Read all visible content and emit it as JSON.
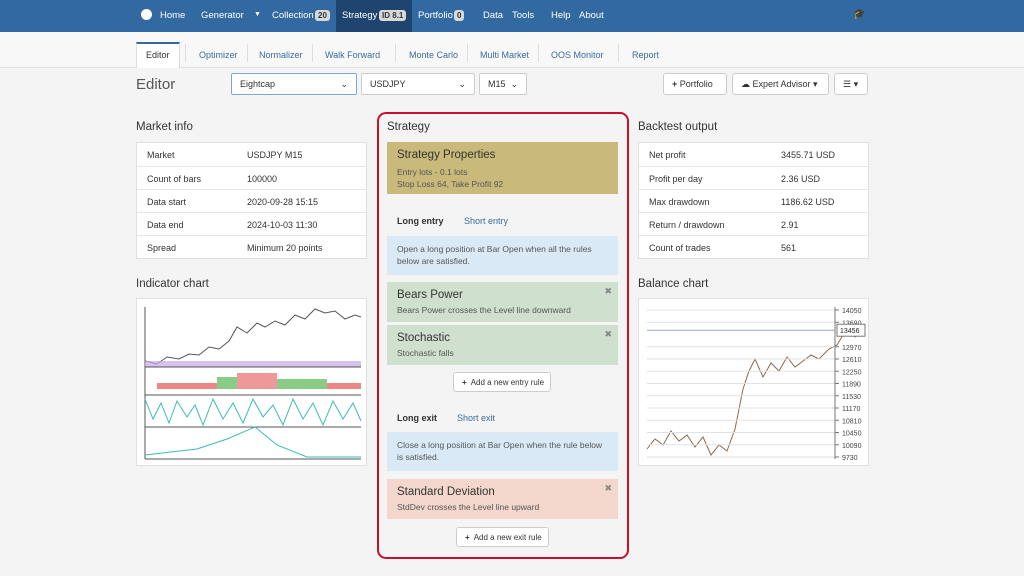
{
  "nav": {
    "items": [
      "Home",
      "Generator",
      "Collection",
      "Strategy",
      "Portfolio",
      "Data",
      "Tools",
      "Help",
      "About"
    ],
    "badges": {
      "collection": 20,
      "strategy": "ID 8.1",
      "portfolio": 0
    }
  },
  "tabs": [
    "Editor",
    "Optimizer",
    "Normalizer",
    "Walk Forward",
    "Monte Carlo",
    "Multi Market",
    "OOS Monitor",
    "Report"
  ],
  "toolbar": {
    "title": "Editor",
    "broker": "Eightcap",
    "symbol": "USDJPY",
    "period": "M15",
    "buttons": [
      "Portfolio",
      "Expert Advisor"
    ]
  },
  "market_info": {
    "title": "Market info",
    "rows": [
      [
        "Market",
        "USDJPY M15"
      ],
      [
        "Count of bars",
        100000
      ],
      [
        "Data start",
        "2020-09-28 15:15"
      ],
      [
        "Data end",
        "2024-10-03 11:30"
      ],
      [
        "Spread",
        "Minimum 20 points"
      ]
    ]
  },
  "indicator_chart": {
    "title": "Indicator chart"
  },
  "strategy": {
    "title": "Strategy",
    "properties": {
      "title": "Strategy Properties",
      "lines": [
        "Entry lots - 0.1 lots",
        "Stop Loss 64, Take Profit 92"
      ]
    },
    "entry": {
      "tabs": [
        "Long entry",
        "Short entry"
      ],
      "description": "Open a long position at Bar Open when all the rules below are satisfied.",
      "rules": [
        {
          "title": "Bears Power",
          "description": "Bears Power crosses the Level line downward"
        },
        {
          "title": "Stochastic",
          "description": "Stochastic falls"
        }
      ],
      "add_button": "Add a new entry rule"
    },
    "exit": {
      "tabs": [
        "Long exit",
        "Short exit"
      ],
      "description": "Close a long position at Bar Open when the rule below is satisfied.",
      "rules": [
        {
          "title": "Standard Deviation",
          "description": "StdDev crosses the Level line upward"
        }
      ],
      "add_button": "Add a new exit rule"
    }
  },
  "backtest_output": {
    "title": "Backtest output",
    "rows": [
      [
        "Net profit",
        "3455.71 USD"
      ],
      [
        "Profit per day",
        "2.36 USD"
      ],
      [
        "Max drawdown",
        "1186.62 USD"
      ],
      [
        "Return / drawdown",
        2.91
      ],
      [
        "Count of trades",
        561
      ]
    ]
  },
  "balance_chart": {
    "title": "Balance chart",
    "ylim": [
      9730,
      14050
    ],
    "yticks": [
      14050,
      13690,
      12970,
      12610,
      12250,
      11890,
      11530,
      11170,
      10810,
      10450,
      10090,
      9730
    ],
    "current": 13456
  }
}
